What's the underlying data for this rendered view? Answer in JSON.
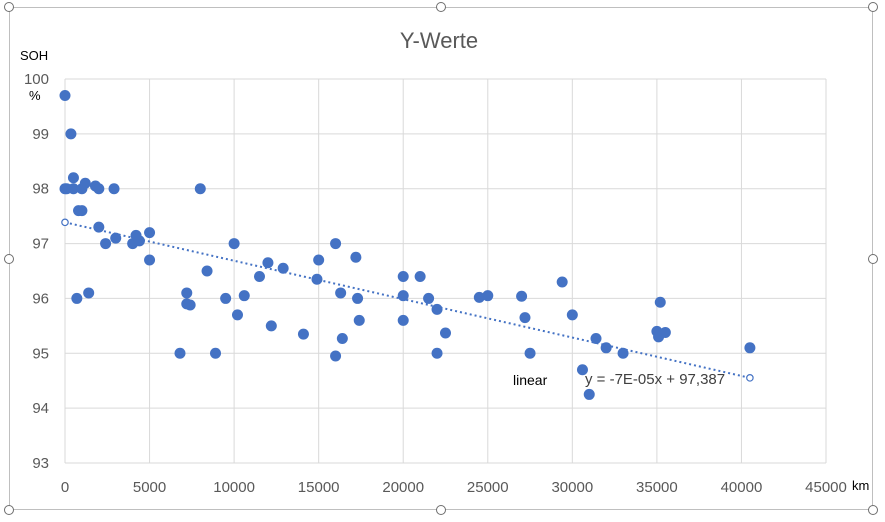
{
  "chart_data": {
    "type": "scatter",
    "title": "Y-Werte",
    "ylabel": "SOH",
    "yunit": "%",
    "xunit": "km",
    "xlim": [
      0,
      45000
    ],
    "ylim": [
      93,
      100
    ],
    "xticks": [
      "0",
      "5000",
      "10000",
      "15000",
      "20000",
      "25000",
      "30000",
      "35000",
      "40000",
      "45000"
    ],
    "yticks": [
      "93",
      "94",
      "95",
      "96",
      "97",
      "98",
      "99",
      "100"
    ],
    "grid": true,
    "marker_color": "#4472c4",
    "series": [
      {
        "points": [
          [
            0,
            99.7
          ],
          [
            0,
            98.0
          ],
          [
            100,
            98.0
          ],
          [
            350,
            99.0
          ],
          [
            500,
            98.2
          ],
          [
            500,
            98.0
          ],
          [
            700,
            96.0
          ],
          [
            800,
            97.6
          ],
          [
            1000,
            97.6
          ],
          [
            1000,
            98.0
          ],
          [
            1200,
            98.1
          ],
          [
            1400,
            96.1
          ],
          [
            1800,
            98.05
          ],
          [
            2000,
            98.0
          ],
          [
            2000,
            97.3
          ],
          [
            2400,
            97.0
          ],
          [
            2900,
            98.0
          ],
          [
            3000,
            97.1
          ],
          [
            4000,
            97.0
          ],
          [
            4200,
            97.15
          ],
          [
            4400,
            97.05
          ],
          [
            5000,
            97.2
          ],
          [
            5000,
            96.7
          ],
          [
            6800,
            95.0
          ],
          [
            7200,
            96.1
          ],
          [
            7200,
            95.9
          ],
          [
            7400,
            95.88
          ],
          [
            8000,
            98.0
          ],
          [
            8400,
            96.5
          ],
          [
            8900,
            95.0
          ],
          [
            9500,
            96.0
          ],
          [
            10000,
            97.0
          ],
          [
            10200,
            95.7
          ],
          [
            10600,
            96.05
          ],
          [
            11500,
            96.4
          ],
          [
            12000,
            96.65
          ],
          [
            12200,
            95.5
          ],
          [
            12900,
            96.55
          ],
          [
            14100,
            95.35
          ],
          [
            14900,
            96.35
          ],
          [
            15000,
            96.7
          ],
          [
            16000,
            97.0
          ],
          [
            16000,
            94.95
          ],
          [
            16300,
            96.1
          ],
          [
            16400,
            95.27
          ],
          [
            17200,
            96.75
          ],
          [
            17300,
            96.0
          ],
          [
            17400,
            95.6
          ],
          [
            20000,
            96.4
          ],
          [
            20000,
            96.05
          ],
          [
            20000,
            95.6
          ],
          [
            21000,
            96.4
          ],
          [
            21500,
            96.0
          ],
          [
            22000,
            95.8
          ],
          [
            22000,
            95.0
          ],
          [
            22500,
            95.37
          ],
          [
            24500,
            96.02
          ],
          [
            25000,
            96.05
          ],
          [
            27000,
            96.04
          ],
          [
            27200,
            95.65
          ],
          [
            27500,
            95.0
          ],
          [
            29400,
            96.3
          ],
          [
            30000,
            95.7
          ],
          [
            30600,
            94.7
          ],
          [
            31000,
            94.25
          ],
          [
            31400,
            95.27
          ],
          [
            32000,
            95.1
          ],
          [
            33000,
            95.0
          ],
          [
            35000,
            95.4
          ],
          [
            35100,
            95.3
          ],
          [
            35200,
            95.93
          ],
          [
            35500,
            95.38
          ],
          [
            40500,
            95.1
          ]
        ]
      }
    ],
    "trendline": {
      "type": "linear",
      "label": "linear",
      "equation": "y = -7E-05x + 97,387",
      "x_start": 0,
      "x_end": 40500,
      "slope": -7e-05,
      "intercept": 97.387,
      "color": "#4472c4"
    }
  }
}
